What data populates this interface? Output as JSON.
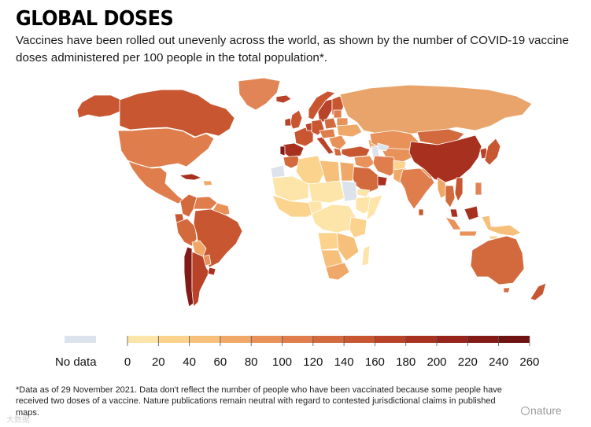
{
  "title": "GLOBAL DOSES",
  "subtitle": "Vaccines have been rolled out unevenly across the world, as shown by the number of COVID-19 vaccine doses administered per 100 people in the total population*.",
  "legend": {
    "no_data_label": "No data",
    "no_data_color": "#dde3ec",
    "ticks": [
      "0",
      "20",
      "40",
      "60",
      "80",
      "100",
      "120",
      "140",
      "160",
      "180",
      "200",
      "220",
      "240",
      "260"
    ],
    "colors": [
      "#fde4a8",
      "#fbd38d",
      "#f6c07a",
      "#f0a868",
      "#e8925a",
      "#df7e4c",
      "#d36a3d",
      "#c75631",
      "#b94328",
      "#a83220",
      "#96241a",
      "#821a16",
      "#6e1212"
    ]
  },
  "map_colors": {
    "land_low": "#fde4a8",
    "land_mid": "#e9a46b",
    "land_high": "#c75631",
    "land_very_high": "#a8301f",
    "no_data": "#dde3ec",
    "border": "#ffffff"
  },
  "footnote": "*Data as of 29 November 2021. Data don't reflect the number of people who have been vaccinated because some people have received two doses of a vaccine. Nature publications remain neutral with regard to contested jurisdictional claims in published maps.",
  "credit": "nature",
  "watermark": "大数据"
}
